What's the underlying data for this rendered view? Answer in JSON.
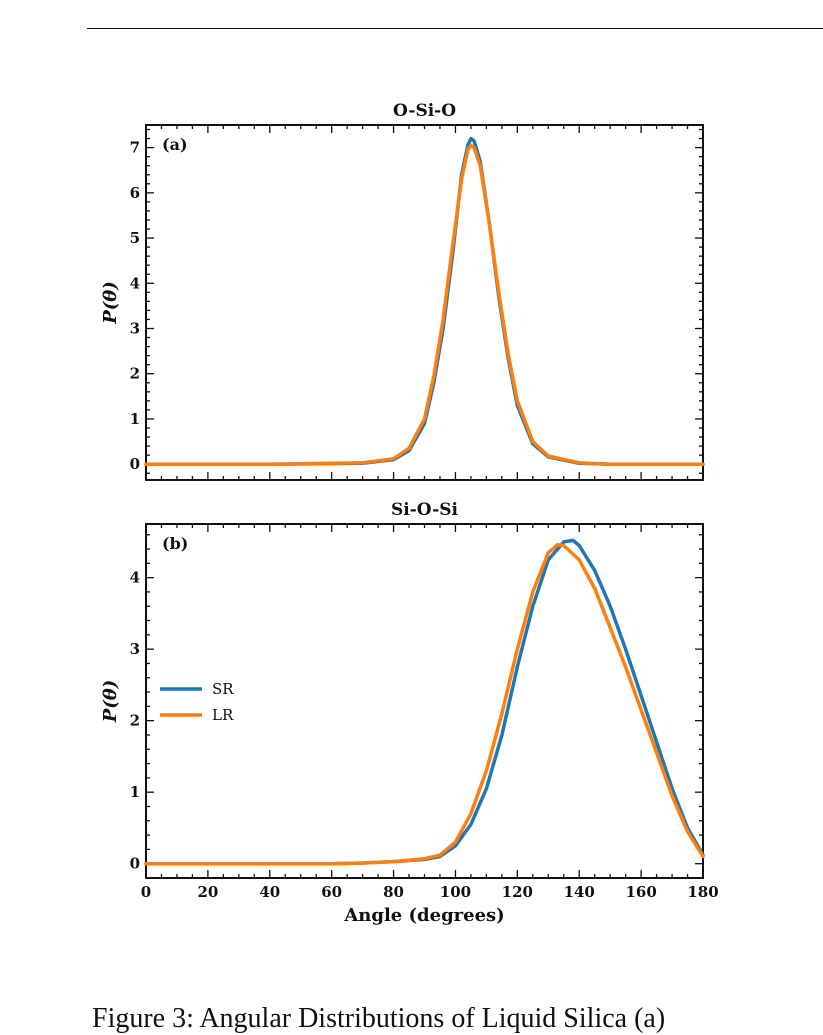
{
  "caption": "Figure 3: Angular Distributions of Liquid Silica (a)",
  "colors": {
    "SR": "#1f77b4",
    "LR": "#ff7f0e"
  },
  "chart_data": [
    {
      "type": "line",
      "title": "O-Si-O",
      "panel_label": "(a)",
      "xlabel": "",
      "ylabel": "P(θ)",
      "xlim": [
        0,
        180
      ],
      "ylim": [
        -0.35,
        7.5
      ],
      "yticks": [
        0,
        1,
        2,
        3,
        4,
        5,
        6,
        7
      ],
      "xtick_labels_shown": false,
      "series": [
        {
          "name": "SR",
          "x": [
            0,
            40,
            70,
            80,
            85,
            90,
            93,
            96,
            99,
            102,
            104,
            105,
            106,
            108,
            111,
            114,
            117,
            120,
            125,
            130,
            140,
            150,
            160,
            180
          ],
          "y": [
            0,
            0,
            0.02,
            0.1,
            0.3,
            0.9,
            1.8,
            3.0,
            4.6,
            6.4,
            7.05,
            7.2,
            7.15,
            6.7,
            5.3,
            3.7,
            2.35,
            1.3,
            0.45,
            0.16,
            0.02,
            0,
            0,
            0
          ]
        },
        {
          "name": "LR",
          "x": [
            0,
            40,
            70,
            80,
            85,
            90,
            93,
            96,
            99,
            102,
            104,
            105,
            106,
            108,
            111,
            114,
            117,
            120,
            125,
            130,
            140,
            150,
            160,
            180
          ],
          "y": [
            0,
            0,
            0.03,
            0.12,
            0.35,
            1.0,
            1.95,
            3.2,
            4.8,
            6.3,
            6.95,
            7.05,
            7.0,
            6.6,
            5.3,
            3.8,
            2.45,
            1.4,
            0.5,
            0.18,
            0.03,
            0,
            0,
            0
          ]
        }
      ]
    },
    {
      "type": "line",
      "title": "Si-O-Si",
      "panel_label": "(b)",
      "xlabel": "Angle (degrees)",
      "ylabel": "P(θ)",
      "xlim": [
        0,
        180
      ],
      "ylim": [
        -0.2,
        4.75
      ],
      "xticks": [
        0,
        20,
        40,
        60,
        80,
        100,
        120,
        140,
        160,
        180
      ],
      "yticks": [
        0,
        1,
        2,
        3,
        4
      ],
      "legend": {
        "placement": "center-left",
        "entries": [
          "SR",
          "LR"
        ]
      },
      "series": [
        {
          "name": "SR",
          "x": [
            0,
            60,
            70,
            80,
            90,
            95,
            100,
            105,
            110,
            115,
            120,
            125,
            130,
            135,
            138,
            140,
            145,
            150,
            155,
            160,
            165,
            170,
            175,
            180
          ],
          "y": [
            0,
            0,
            0.01,
            0.03,
            0.06,
            0.1,
            0.25,
            0.55,
            1.05,
            1.8,
            2.75,
            3.6,
            4.25,
            4.5,
            4.52,
            4.45,
            4.1,
            3.6,
            3.0,
            2.35,
            1.7,
            1.05,
            0.5,
            0.12
          ]
        },
        {
          "name": "LR",
          "x": [
            0,
            60,
            70,
            80,
            90,
            95,
            100,
            105,
            110,
            115,
            120,
            125,
            130,
            133,
            135,
            140,
            145,
            150,
            155,
            160,
            165,
            170,
            175,
            180
          ],
          "y": [
            0,
            0,
            0.01,
            0.03,
            0.07,
            0.12,
            0.3,
            0.7,
            1.3,
            2.1,
            3.0,
            3.8,
            4.35,
            4.46,
            4.45,
            4.25,
            3.85,
            3.3,
            2.75,
            2.15,
            1.55,
            0.95,
            0.45,
            0.1
          ]
        }
      ]
    }
  ]
}
